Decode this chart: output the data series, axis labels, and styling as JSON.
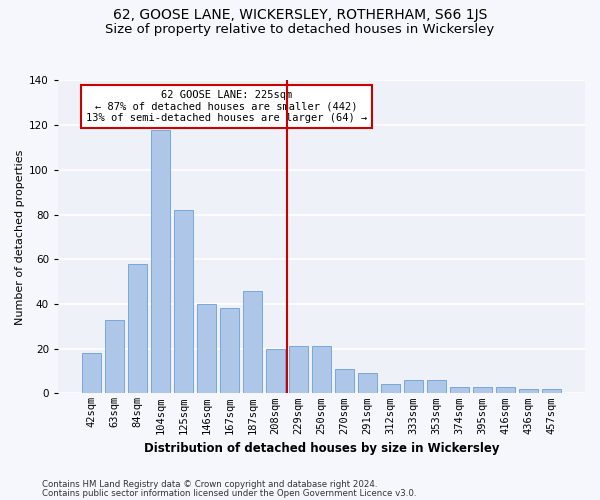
{
  "title": "62, GOOSE LANE, WICKERSLEY, ROTHERHAM, S66 1JS",
  "subtitle": "Size of property relative to detached houses in Wickersley",
  "xlabel": "Distribution of detached houses by size in Wickersley",
  "ylabel": "Number of detached properties",
  "categories": [
    "42sqm",
    "63sqm",
    "84sqm",
    "104sqm",
    "125sqm",
    "146sqm",
    "167sqm",
    "187sqm",
    "208sqm",
    "229sqm",
    "250sqm",
    "270sqm",
    "291sqm",
    "312sqm",
    "333sqm",
    "353sqm",
    "374sqm",
    "395sqm",
    "416sqm",
    "436sqm",
    "457sqm"
  ],
  "values": [
    18,
    33,
    58,
    118,
    82,
    40,
    38,
    46,
    20,
    21,
    21,
    11,
    9,
    4,
    6,
    6,
    3,
    3,
    3,
    2,
    2
  ],
  "bar_color": "#aec6e8",
  "bar_edge_color": "#6a9fd8",
  "vline_x": 8.5,
  "vline_color": "#cc0000",
  "annotation_text": "62 GOOSE LANE: 225sqm\n← 87% of detached houses are smaller (442)\n13% of semi-detached houses are larger (64) →",
  "annotation_box_color": "#ffffff",
  "annotation_edge_color": "#cc0000",
  "background_color": "#eef2f8",
  "fig_background_color": "#f5f7fc",
  "grid_color": "#ffffff",
  "ylim": [
    0,
    140
  ],
  "yticks": [
    0,
    20,
    40,
    60,
    80,
    100,
    120,
    140
  ],
  "title_fontsize": 10,
  "subtitle_fontsize": 9.5,
  "xlabel_fontsize": 8.5,
  "ylabel_fontsize": 8,
  "tick_fontsize": 7.5,
  "footer_line1": "Contains HM Land Registry data © Crown copyright and database right 2024.",
  "footer_line2": "Contains public sector information licensed under the Open Government Licence v3.0."
}
